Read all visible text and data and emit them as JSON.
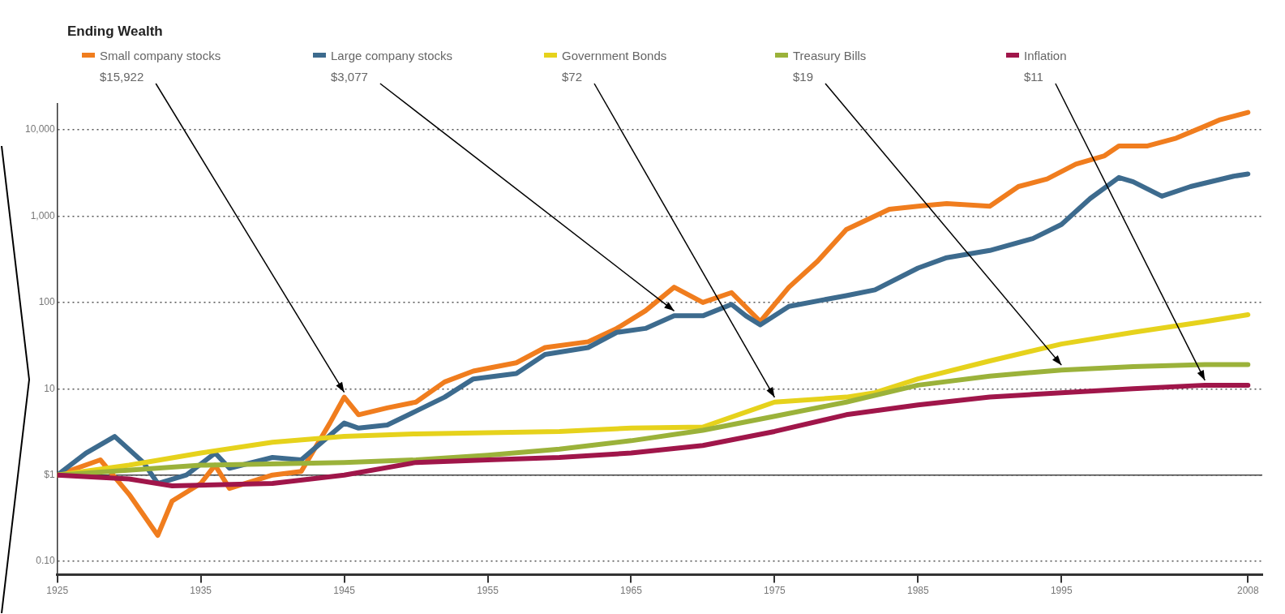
{
  "chart_data": {
    "type": "line",
    "title": "Ending Wealth",
    "series": [
      {
        "name": "Small company stocks",
        "color": "#f07d1e",
        "x": [
          1925,
          1928,
          1930,
          1932,
          1933,
          1935,
          1936,
          1937,
          1940,
          1942,
          1944,
          1945,
          1946,
          1948,
          1950,
          1952,
          1954,
          1957,
          1959,
          1962,
          1964,
          1966,
          1968,
          1970,
          1972,
          1974,
          1976,
          1978,
          1980,
          1983,
          1985,
          1987,
          1990,
          1992,
          1994,
          1996,
          1998,
          1999,
          2001,
          2003,
          2005,
          2006,
          2008
        ],
        "values": [
          1,
          1.5,
          0.6,
          0.2,
          0.5,
          0.8,
          1.3,
          0.7,
          1,
          1.1,
          4,
          8,
          5,
          6,
          7,
          12,
          16,
          20,
          30,
          35,
          50,
          80,
          150,
          100,
          130,
          60,
          150,
          300,
          700,
          1200,
          1300,
          1400,
          1300,
          2200,
          2700,
          4000,
          5000,
          6500,
          6500,
          8000,
          11000,
          13000,
          15922
        ]
      },
      {
        "name": "Large company stocks",
        "color": "#3d6b8e",
        "x": [
          1925,
          1927,
          1929,
          1931,
          1932,
          1934,
          1936,
          1937,
          1940,
          1942,
          1945,
          1946,
          1948,
          1950,
          1952,
          1954,
          1957,
          1959,
          1962,
          1964,
          1966,
          1968,
          1970,
          1972,
          1973,
          1974,
          1976,
          1980,
          1982,
          1985,
          1987,
          1990,
          1993,
          1995,
          1997,
          1999,
          2000,
          2002,
          2004,
          2007,
          2008
        ],
        "values": [
          1,
          1.8,
          2.8,
          1.4,
          0.8,
          1,
          1.8,
          1.2,
          1.6,
          1.5,
          4,
          3.5,
          3.8,
          5.5,
          8,
          13,
          15,
          25,
          30,
          45,
          50,
          70,
          70,
          95,
          70,
          55,
          90,
          120,
          140,
          250,
          330,
          400,
          550,
          800,
          1600,
          2800,
          2500,
          1700,
          2200,
          2900,
          3077
        ]
      },
      {
        "name": "Government Bonds",
        "color": "#e6d21c",
        "x": [
          1925,
          1930,
          1935,
          1940,
          1945,
          1950,
          1955,
          1960,
          1965,
          1970,
          1975,
          1980,
          1982,
          1985,
          1990,
          1995,
          2000,
          2005,
          2008
        ],
        "values": [
          1,
          1.3,
          1.8,
          2.4,
          2.8,
          3,
          3.1,
          3.2,
          3.5,
          3.6,
          7,
          8,
          9,
          13,
          21,
          33,
          45,
          60,
          72
        ]
      },
      {
        "name": "Treasury Bills",
        "color": "#9bb23a",
        "x": [
          1925,
          1935,
          1945,
          1950,
          1955,
          1960,
          1965,
          1970,
          1975,
          1980,
          1985,
          1990,
          1995,
          2000,
          2005,
          2008
        ],
        "values": [
          1,
          1.3,
          1.4,
          1.5,
          1.7,
          2,
          2.5,
          3.3,
          4.8,
          7,
          11,
          14,
          16.5,
          18,
          19,
          19
        ]
      },
      {
        "name": "Inflation",
        "color": "#a0164a",
        "x": [
          1925,
          1930,
          1933,
          1940,
          1945,
          1950,
          1955,
          1960,
          1965,
          1970,
          1975,
          1980,
          1985,
          1990,
          1995,
          2000,
          2005,
          2008
        ],
        "values": [
          1,
          0.9,
          0.75,
          0.8,
          1,
          1.4,
          1.5,
          1.6,
          1.8,
          2.2,
          3.2,
          5,
          6.5,
          8,
          9,
          10,
          11,
          11
        ]
      }
    ],
    "annotations": [
      {
        "text": "$15,922",
        "x": 1945,
        "y": 8
      },
      {
        "text": "$3,077",
        "x": 1968,
        "y": 70
      },
      {
        "text": "$72",
        "x": 1975,
        "y": 7
      },
      {
        "text": "$19",
        "x": 1995,
        "y": 16.5
      },
      {
        "text": "$11",
        "x": 2005,
        "y": 11
      }
    ],
    "log": "y",
    "xlim": [
      1925,
      2009
    ],
    "ylim": [
      0.07,
      20000
    ],
    "xticks": [
      1925,
      1935,
      1945,
      1955,
      1965,
      1975,
      1985,
      1995,
      2008
    ],
    "yticks": [
      {
        "value": 0.1,
        "label": "0.10"
      },
      {
        "value": 1,
        "label": "$1"
      },
      {
        "value": 10,
        "label": "10"
      },
      {
        "value": 100,
        "label": "100"
      },
      {
        "value": 1000,
        "label": "1,000"
      },
      {
        "value": 10000,
        "label": "10,000"
      }
    ],
    "ref_lines": [
      {
        "axis": "y",
        "value": 1,
        "color": "#444444",
        "line_style": "solid"
      }
    ],
    "grid": "y",
    "legend": "top",
    "marker": "none",
    "line_style": "solid"
  }
}
